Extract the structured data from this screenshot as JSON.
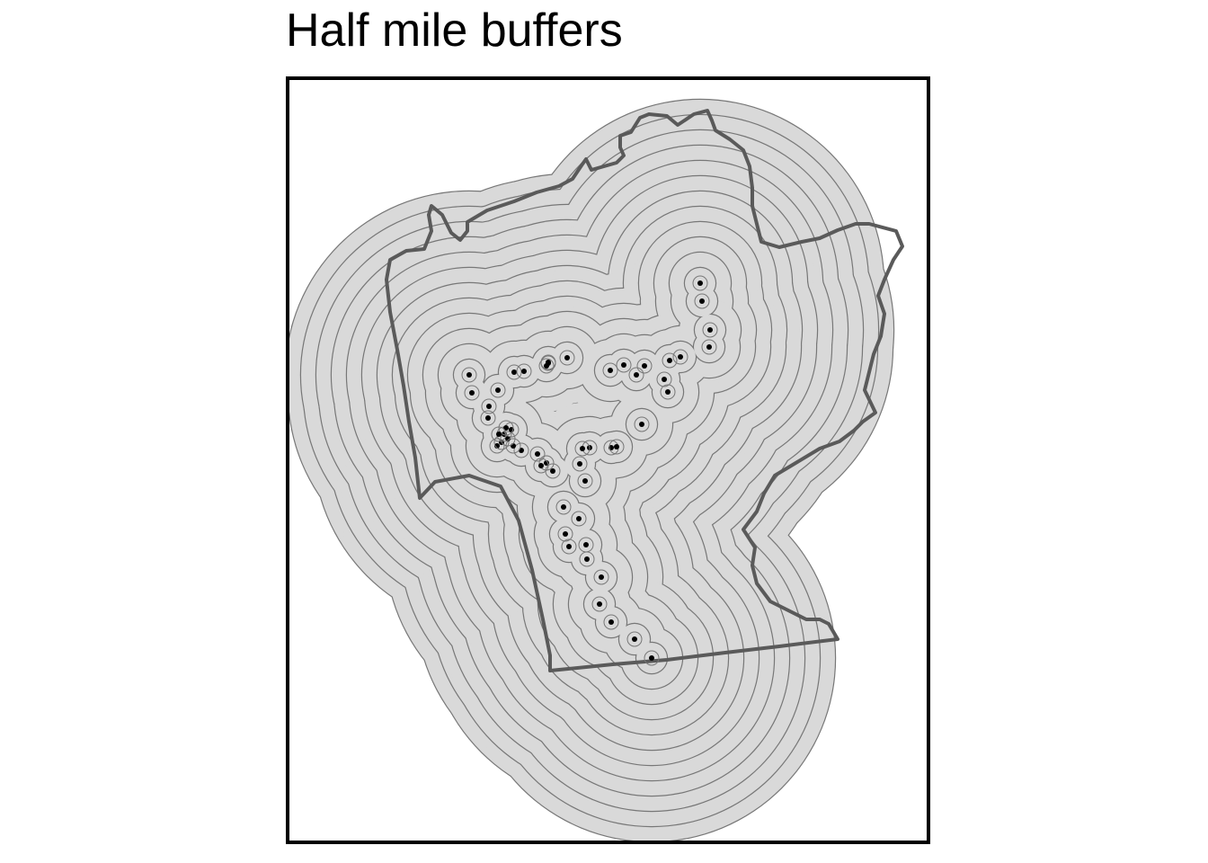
{
  "title": "Half mile buffers",
  "colors": {
    "background": "#ffffff",
    "buffer_fill": "#d9d9d9",
    "buffer_ring_stroke": "#777777",
    "boundary_stroke": "#5a5a5a",
    "point_fill": "#000000",
    "frame_border": "#000000"
  },
  "legend": null
}
